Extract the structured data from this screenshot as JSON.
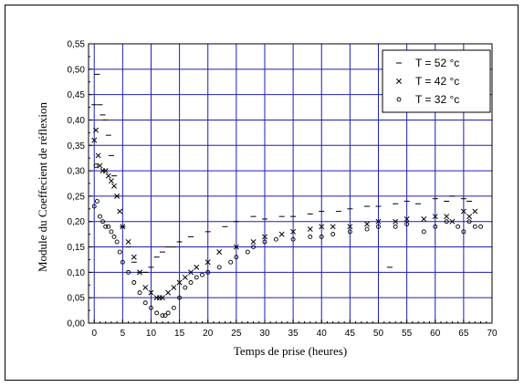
{
  "chart_data": {
    "type": "scatter",
    "title": "",
    "xlabel": "Temps de prise (heures)",
    "ylabel": "Module du Coeffecient de réflexion",
    "xlim": [
      -1,
      70
    ],
    "ylim": [
      0,
      0.55
    ],
    "xticks": [
      "0",
      "5",
      "10",
      "15",
      "20",
      "25",
      "30",
      "35",
      "40",
      "45",
      "50",
      "55",
      "60",
      "65",
      "70"
    ],
    "yticks": [
      "0,00",
      "0,05",
      "0,10",
      "0,15",
      "0,20",
      "0,25",
      "0,30",
      "0,35",
      "0,40",
      "0,45",
      "0,50",
      "0,55"
    ],
    "grid": true,
    "legend_position": "top-right",
    "colors": {
      "grid": "#1f1fb4",
      "marker": "#000000"
    },
    "series": [
      {
        "name": "T = 52 °c",
        "marker": "dash",
        "x": [
          0,
          0.5,
          1,
          1.5,
          2,
          2.5,
          3,
          3.5,
          4,
          5,
          6,
          7,
          8,
          9,
          10,
          11,
          12,
          13,
          14,
          15,
          17,
          20,
          23,
          25,
          28,
          30,
          33,
          35,
          38,
          40,
          43,
          45,
          48,
          50,
          52,
          53,
          55,
          57,
          60,
          62,
          63,
          65,
          66
        ],
        "y": [
          0.43,
          0.49,
          0.43,
          0.41,
          0.4,
          0.37,
          0.33,
          0.29,
          0.25,
          0.19,
          0.15,
          0.12,
          0.1,
          0.1,
          0.11,
          0.13,
          0.14,
          0.15,
          0.15,
          0.16,
          0.17,
          0.18,
          0.19,
          0.2,
          0.21,
          0.205,
          0.21,
          0.21,
          0.215,
          0.22,
          0.22,
          0.225,
          0.23,
          0.23,
          0.11,
          0.235,
          0.24,
          0.235,
          0.245,
          0.24,
          0.25,
          0.245,
          0.24
        ]
      },
      {
        "name": "T = 42 °c",
        "marker": "cross",
        "x": [
          0,
          0.3,
          0.7,
          1,
          1.5,
          2,
          2.5,
          3,
          3.5,
          4,
          4.5,
          5,
          6,
          7,
          8,
          9,
          10,
          11,
          11.5,
          12,
          13,
          14,
          15,
          16,
          17,
          18,
          20,
          22,
          25,
          28,
          30,
          33,
          35,
          38,
          40,
          42,
          45,
          48,
          50,
          53,
          55,
          58,
          60,
          62,
          63,
          65,
          66,
          67
        ],
        "y": [
          0.36,
          0.38,
          0.33,
          0.31,
          0.3,
          0.3,
          0.29,
          0.28,
          0.27,
          0.25,
          0.22,
          0.19,
          0.16,
          0.13,
          0.1,
          0.07,
          0.06,
          0.05,
          0.05,
          0.05,
          0.06,
          0.07,
          0.08,
          0.09,
          0.1,
          0.11,
          0.12,
          0.14,
          0.15,
          0.16,
          0.17,
          0.175,
          0.18,
          0.185,
          0.19,
          0.19,
          0.19,
          0.195,
          0.2,
          0.2,
          0.205,
          0.205,
          0.21,
          0.21,
          0.2,
          0.22,
          0.21,
          0.22
        ]
      },
      {
        "name": "T = 32 °c",
        "marker": "circle",
        "x": [
          0,
          0.3,
          0.5,
          1,
          1.5,
          2,
          2.5,
          3,
          3.5,
          4,
          4.5,
          5,
          6,
          7,
          8,
          9,
          10,
          11,
          12,
          12.5,
          13,
          14,
          15,
          16,
          17,
          18,
          19,
          20,
          22,
          24,
          25,
          27,
          28,
          30,
          32,
          35,
          38,
          40,
          42,
          45,
          48,
          50,
          53,
          55,
          58,
          60,
          62,
          64,
          65,
          66,
          67,
          68
        ],
        "y": [
          0.23,
          0.31,
          0.24,
          0.21,
          0.2,
          0.19,
          0.19,
          0.18,
          0.17,
          0.16,
          0.14,
          0.12,
          0.1,
          0.08,
          0.06,
          0.04,
          0.03,
          0.02,
          0.015,
          0.015,
          0.02,
          0.03,
          0.05,
          0.07,
          0.08,
          0.09,
          0.095,
          0.1,
          0.11,
          0.12,
          0.13,
          0.14,
          0.15,
          0.16,
          0.165,
          0.165,
          0.17,
          0.17,
          0.175,
          0.18,
          0.185,
          0.19,
          0.19,
          0.195,
          0.18,
          0.19,
          0.2,
          0.19,
          0.18,
          0.2,
          0.19,
          0.19
        ]
      }
    ]
  }
}
